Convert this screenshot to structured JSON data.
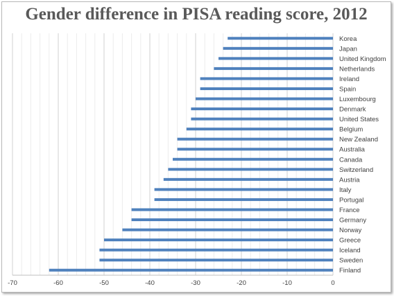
{
  "chart_data": {
    "type": "bar",
    "orientation": "horizontal",
    "title": "Gender difference in PISA reading score, 2012",
    "xlabel": "",
    "ylabel": "",
    "xlim": [
      -70,
      0
    ],
    "xticks": [
      -70,
      -60,
      -50,
      -40,
      -30,
      -20,
      -10,
      0
    ],
    "grid": true,
    "legend": "none",
    "bar_color": "#4f81bd",
    "categories": [
      "Korea",
      "Japan",
      "United Kingdom",
      "Netherlands",
      "Ireland",
      "Spain",
      "Luxembourg",
      "Denmark",
      "United States",
      "Belgium",
      "New Zealand",
      "Australia",
      "Canada",
      "Switzerland",
      "Austria",
      "Italy",
      "Portugal",
      "France",
      "Germany",
      "Norway",
      "Greece",
      "Iceland",
      "Sweden",
      "Finland"
    ],
    "values": [
      -23,
      -24,
      -25,
      -26,
      -29,
      -29,
      -30,
      -31,
      -31,
      -32,
      -34,
      -34,
      -35,
      -36,
      -37,
      -39,
      -39,
      -44,
      -44,
      -46,
      -50,
      -51,
      -51,
      -62
    ]
  }
}
